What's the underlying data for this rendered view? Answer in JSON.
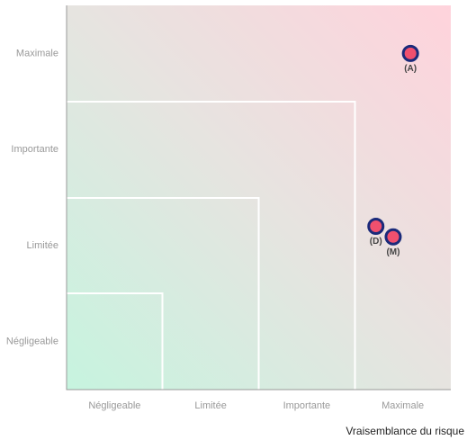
{
  "chart_data": {
    "type": "scatter",
    "x_label": "Vraisemblance du risque",
    "xlim": [
      0,
      4
    ],
    "ylim": [
      0,
      4
    ],
    "xticks": [
      {
        "value": 0.5,
        "label": "Négligeable"
      },
      {
        "value": 1.5,
        "label": "Limitée"
      },
      {
        "value": 2.5,
        "label": "Importante"
      },
      {
        "value": 3.5,
        "label": "Maximale"
      }
    ],
    "yticks": [
      {
        "value": 0.5,
        "label": "Négligeable"
      },
      {
        "value": 1.5,
        "label": "Limitée"
      },
      {
        "value": 2.5,
        "label": "Importante"
      },
      {
        "value": 3.5,
        "label": "Maximale"
      }
    ],
    "points": [
      {
        "name": "(A)",
        "x": 3.58,
        "y": 3.5
      },
      {
        "name": "(D)",
        "x": 3.22,
        "y": 1.7
      },
      {
        "name": "(M)",
        "x": 3.4,
        "y": 1.59
      }
    ],
    "color": "#f0506e",
    "edge_color": "#1a2a7a"
  }
}
